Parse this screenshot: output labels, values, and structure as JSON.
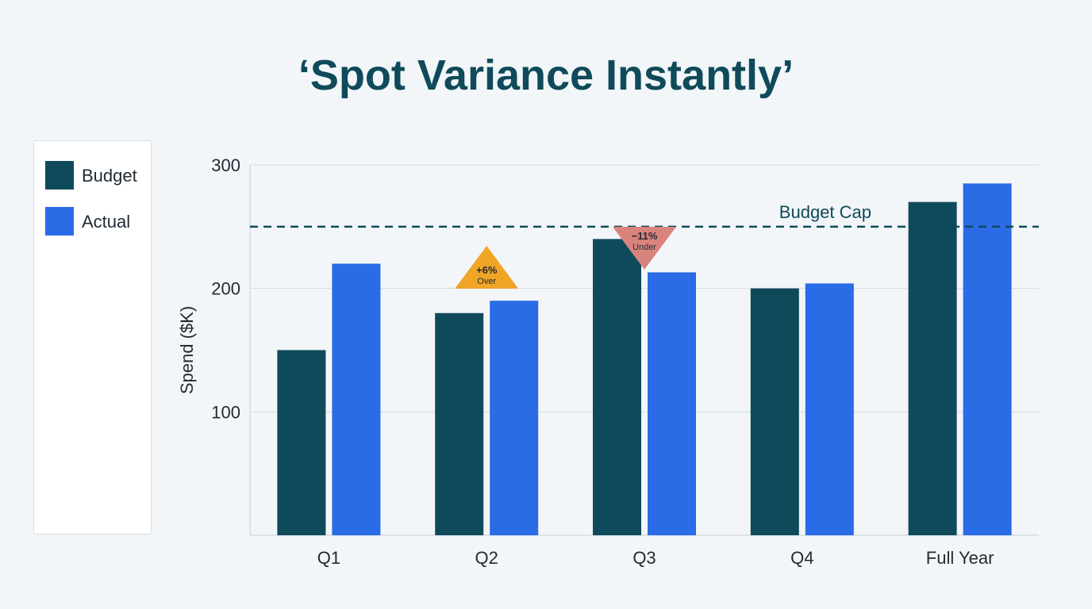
{
  "title": "‘Spot Variance Instantly’",
  "legend": {
    "items": [
      {
        "label": "Budget",
        "color": "#0f4a5a"
      },
      {
        "label": "Actual",
        "color": "#2a6be6"
      }
    ]
  },
  "chart_data": {
    "type": "bar",
    "categories": [
      "Q1",
      "Q2",
      "Q3",
      "Q4",
      "Full Year"
    ],
    "series": [
      {
        "name": "Budget",
        "values": [
          150,
          180,
          240,
          200,
          270
        ],
        "color": "#0f4a5a"
      },
      {
        "name": "Actual",
        "values": [
          220,
          190,
          213,
          204,
          285
        ],
        "color": "#2a6be6"
      }
    ],
    "ylabel": "Spend ($K)",
    "ylim": [
      0,
      300
    ],
    "yticks": [
      100,
      200,
      300
    ],
    "grid": true,
    "legend_position": "left",
    "reference_line": {
      "label": "Budget Cap",
      "value": 250,
      "color": "#0f4a5a",
      "style": "dashed"
    },
    "annotations": [
      {
        "category": "Q2",
        "text": "+6%",
        "subtext": "Over",
        "direction": "up",
        "color": "#f0a526"
      },
      {
        "category": "Q3",
        "text": "−11%",
        "subtext": "Under",
        "direction": "down",
        "color": "#d9837d"
      }
    ]
  }
}
